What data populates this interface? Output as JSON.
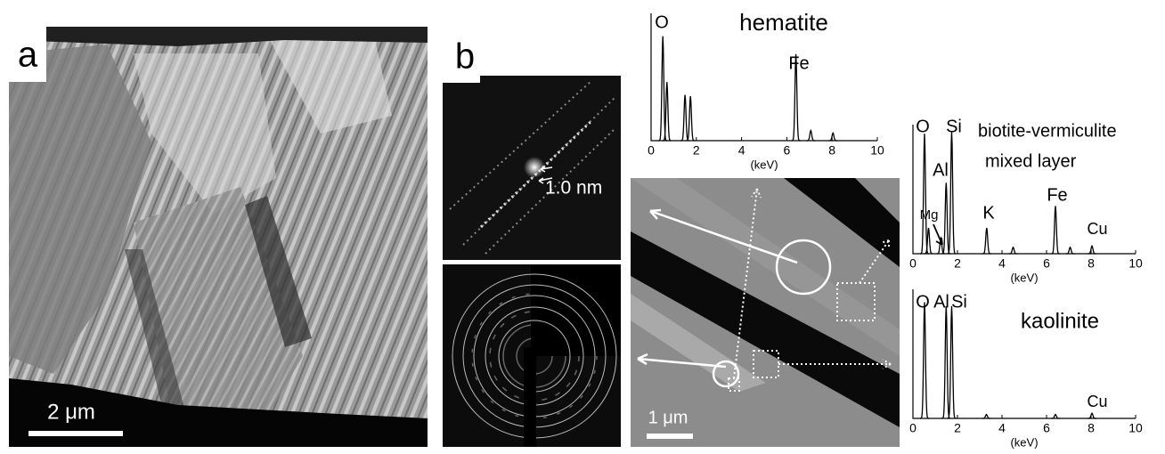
{
  "panels": {
    "a": {
      "label": "a",
      "scale_bar": "2 μm"
    },
    "b": {
      "label": "b",
      "d_spacing": "1.0 nm",
      "scale_bar": "1 μm"
    }
  },
  "chart_data": [
    {
      "type": "spectrum",
      "title": "hematite",
      "x_label": "(keV)",
      "color": "#000000",
      "xlim": [
        0,
        10
      ],
      "xticks": [
        0,
        2,
        4,
        6,
        8,
        10
      ],
      "ylim": [
        0,
        1
      ],
      "x": [
        0.52,
        0.7,
        1.5,
        1.74,
        6.4,
        7.06,
        8.04
      ],
      "values": [
        0.82,
        0.46,
        0.36,
        0.35,
        0.68,
        0.08,
        0.06
      ],
      "peak_labels": [
        "O",
        "Fe"
      ]
    },
    {
      "type": "spectrum",
      "title": "biotite-vermiculite",
      "subtitle": "mixed layer",
      "x_label": "(keV)",
      "color": "#000000",
      "xlim": [
        0,
        10
      ],
      "xticks": [
        0,
        2,
        4,
        6,
        8,
        10
      ],
      "ylim": [
        0,
        1
      ],
      "x": [
        0.52,
        0.7,
        1.25,
        1.49,
        1.74,
        3.31,
        4.5,
        6.4,
        7.06,
        8.04
      ],
      "values": [
        0.93,
        0.2,
        0.12,
        0.55,
        0.95,
        0.2,
        0.05,
        0.37,
        0.05,
        0.06
      ],
      "peak_labels": [
        "O",
        "Si",
        "Al",
        "Mg",
        "K",
        "Fe",
        "Cu"
      ]
    },
    {
      "type": "spectrum",
      "title": "kaolinite",
      "x_label": "(keV)",
      "color": "#000000",
      "xlim": [
        0,
        10
      ],
      "xticks": [
        0,
        2,
        4,
        6,
        8,
        10
      ],
      "ylim": [
        0,
        1
      ],
      "x": [
        0.52,
        1.49,
        1.74,
        3.3,
        6.4,
        8.04
      ],
      "values": [
        0.9,
        0.87,
        0.87,
        0.03,
        0.03,
        0.04
      ],
      "peak_labels": [
        "O",
        "Al",
        "Si",
        "Cu"
      ]
    }
  ]
}
